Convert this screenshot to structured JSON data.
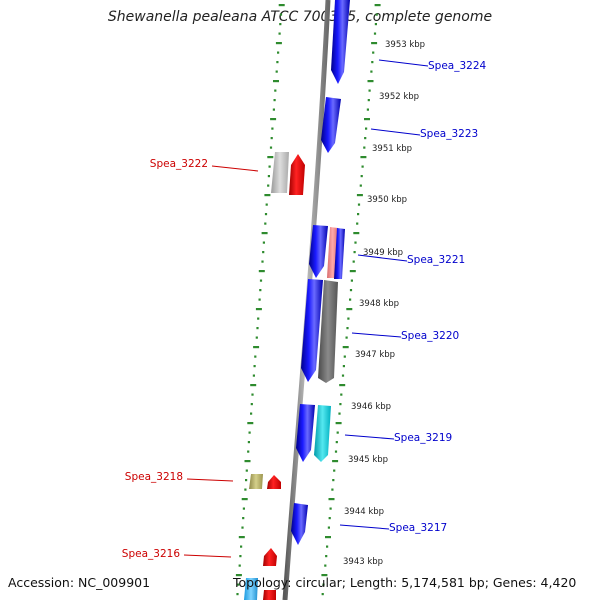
{
  "title": "Shewanella pealeana ATCC 700345, complete genome",
  "footer": {
    "accession": "Accession: NC_009901",
    "summary": "Topology: circular; Length: 5,174,581 bp; Genes: 4,420"
  },
  "ticks": [
    "3953 kbp",
    "3952 kbp",
    "3951 kbp",
    "3950 kbp",
    "3949 kbp",
    "3948 kbp",
    "3947 kbp",
    "3946 kbp",
    "3945 kbp",
    "3944 kbp",
    "3943 kbp"
  ],
  "gene_labels": [
    {
      "text": "Spea_3224",
      "side": "right",
      "color": "#0000cc"
    },
    {
      "text": "Spea_3223",
      "side": "right",
      "color": "#0000cc"
    },
    {
      "text": "Spea_3222",
      "side": "left",
      "color": "#cc0000"
    },
    {
      "text": "Spea_3221",
      "side": "right",
      "color": "#0000cc"
    },
    {
      "text": "Spea_3220",
      "side": "right",
      "color": "#0000cc"
    },
    {
      "text": "Spea_3219",
      "side": "right",
      "color": "#0000cc"
    },
    {
      "text": "Spea_3218",
      "side": "left",
      "color": "#cc0000"
    },
    {
      "text": "Spea_3217",
      "side": "right",
      "color": "#0000cc"
    },
    {
      "text": "Spea_3216",
      "side": "left",
      "color": "#cc0000"
    }
  ],
  "colors": {
    "forward_gene": "#0000ee",
    "reverse_gene": "#ee0000",
    "gc_track": "#2e8b2e",
    "backbone": "#888888",
    "rna_gene": "#00bcd4"
  }
}
